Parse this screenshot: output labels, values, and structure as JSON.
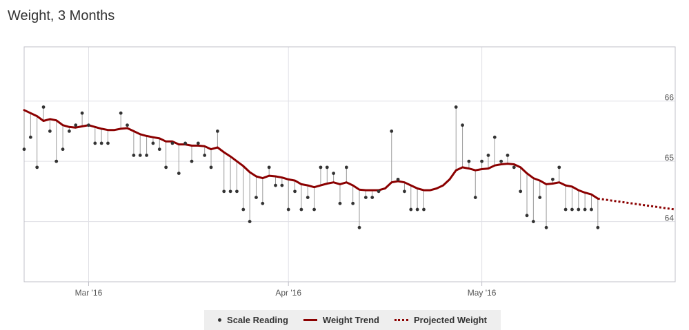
{
  "title": "Weight, 3 Months",
  "colors": {
    "trend": "#8b0000",
    "projected": "#8b0000",
    "reading": "#333333",
    "stem": "#999999",
    "grid": "#e0e0e6",
    "axis": "#c0c0c8"
  },
  "chart_data": {
    "type": "line",
    "title": "Weight, 3 Months",
    "x_axis": {
      "type": "date",
      "range": [
        "2016-02-20",
        "2016-05-31"
      ],
      "ticks": [
        {
          "date": "2016-03-01",
          "label": "Mar '16"
        },
        {
          "date": "2016-04-01",
          "label": "Apr '16"
        },
        {
          "date": "2016-05-01",
          "label": "May '16"
        }
      ]
    },
    "y_axis": {
      "range": [
        63.0,
        66.9
      ],
      "ticks": [
        64,
        65,
        66
      ],
      "position": "right"
    },
    "grid": true,
    "legend": {
      "position": "bottom-center",
      "items": [
        "Scale Reading",
        "Weight Trend",
        "Projected Weight"
      ]
    },
    "series": [
      {
        "name": "Scale Reading",
        "type": "scatter",
        "points": [
          [
            "2016-02-20",
            65.2
          ],
          [
            "2016-02-21",
            65.4
          ],
          [
            "2016-02-22",
            64.9
          ],
          [
            "2016-02-23",
            65.9
          ],
          [
            "2016-02-24",
            65.5
          ],
          [
            "2016-02-25",
            65.0
          ],
          [
            "2016-02-26",
            65.2
          ],
          [
            "2016-02-27",
            65.5
          ],
          [
            "2016-02-28",
            65.6
          ],
          [
            "2016-02-29",
            65.8
          ],
          [
            "2016-03-01",
            65.6
          ],
          [
            "2016-03-02",
            65.3
          ],
          [
            "2016-03-03",
            65.3
          ],
          [
            "2016-03-04",
            65.3
          ],
          [
            "2016-03-06",
            65.8
          ],
          [
            "2016-03-07",
            65.6
          ],
          [
            "2016-03-08",
            65.1
          ],
          [
            "2016-03-09",
            65.1
          ],
          [
            "2016-03-10",
            65.1
          ],
          [
            "2016-03-11",
            65.3
          ],
          [
            "2016-03-12",
            65.2
          ],
          [
            "2016-03-13",
            64.9
          ],
          [
            "2016-03-14",
            65.3
          ],
          [
            "2016-03-15",
            64.8
          ],
          [
            "2016-03-16",
            65.3
          ],
          [
            "2016-03-17",
            65.0
          ],
          [
            "2016-03-18",
            65.3
          ],
          [
            "2016-03-19",
            65.1
          ],
          [
            "2016-03-20",
            64.9
          ],
          [
            "2016-03-21",
            65.5
          ],
          [
            "2016-03-22",
            64.5
          ],
          [
            "2016-03-23",
            64.5
          ],
          [
            "2016-03-24",
            64.5
          ],
          [
            "2016-03-25",
            64.2
          ],
          [
            "2016-03-26",
            64.0
          ],
          [
            "2016-03-27",
            64.4
          ],
          [
            "2016-03-28",
            64.3
          ],
          [
            "2016-03-29",
            64.9
          ],
          [
            "2016-03-30",
            64.6
          ],
          [
            "2016-03-31",
            64.6
          ],
          [
            "2016-04-01",
            64.2
          ],
          [
            "2016-04-02",
            64.5
          ],
          [
            "2016-04-03",
            64.2
          ],
          [
            "2016-04-04",
            64.4
          ],
          [
            "2016-04-05",
            64.2
          ],
          [
            "2016-04-06",
            64.9
          ],
          [
            "2016-04-07",
            64.9
          ],
          [
            "2016-04-08",
            64.8
          ],
          [
            "2016-04-09",
            64.3
          ],
          [
            "2016-04-10",
            64.9
          ],
          [
            "2016-04-11",
            64.3
          ],
          [
            "2016-04-12",
            63.9
          ],
          [
            "2016-04-13",
            64.4
          ],
          [
            "2016-04-14",
            64.4
          ],
          [
            "2016-04-15",
            64.5
          ],
          [
            "2016-04-17",
            65.5
          ],
          [
            "2016-04-18",
            64.7
          ],
          [
            "2016-04-19",
            64.5
          ],
          [
            "2016-04-20",
            64.2
          ],
          [
            "2016-04-21",
            64.2
          ],
          [
            "2016-04-22",
            64.2
          ],
          [
            "2016-04-27",
            65.9
          ],
          [
            "2016-04-28",
            65.6
          ],
          [
            "2016-04-29",
            65.0
          ],
          [
            "2016-04-30",
            64.4
          ],
          [
            "2016-05-01",
            65.0
          ],
          [
            "2016-05-02",
            65.1
          ],
          [
            "2016-05-03",
            65.4
          ],
          [
            "2016-05-04",
            65.0
          ],
          [
            "2016-05-05",
            65.1
          ],
          [
            "2016-05-06",
            64.9
          ],
          [
            "2016-05-07",
            64.5
          ],
          [
            "2016-05-08",
            64.1
          ],
          [
            "2016-05-09",
            64.0
          ],
          [
            "2016-05-10",
            64.4
          ],
          [
            "2016-05-11",
            63.9
          ],
          [
            "2016-05-12",
            64.7
          ],
          [
            "2016-05-13",
            64.9
          ],
          [
            "2016-05-14",
            64.2
          ],
          [
            "2016-05-15",
            64.2
          ],
          [
            "2016-05-16",
            64.2
          ],
          [
            "2016-05-17",
            64.2
          ],
          [
            "2016-05-18",
            64.2
          ],
          [
            "2016-05-19",
            63.9
          ]
        ]
      },
      {
        "name": "Weight Trend",
        "type": "line",
        "points": [
          [
            "2016-02-20",
            65.85
          ],
          [
            "2016-02-21",
            65.8
          ],
          [
            "2016-02-22",
            65.75
          ],
          [
            "2016-02-23",
            65.67
          ],
          [
            "2016-02-24",
            65.7
          ],
          [
            "2016-02-25",
            65.68
          ],
          [
            "2016-02-26",
            65.6
          ],
          [
            "2016-02-27",
            65.57
          ],
          [
            "2016-02-28",
            65.56
          ],
          [
            "2016-02-29",
            65.58
          ],
          [
            "2016-03-01",
            65.6
          ],
          [
            "2016-03-02",
            65.57
          ],
          [
            "2016-03-03",
            65.54
          ],
          [
            "2016-03-04",
            65.52
          ],
          [
            "2016-03-05",
            65.52
          ],
          [
            "2016-03-06",
            65.54
          ],
          [
            "2016-03-07",
            65.55
          ],
          [
            "2016-03-08",
            65.5
          ],
          [
            "2016-03-09",
            65.45
          ],
          [
            "2016-03-10",
            65.42
          ],
          [
            "2016-03-11",
            65.4
          ],
          [
            "2016-03-12",
            65.38
          ],
          [
            "2016-03-13",
            65.33
          ],
          [
            "2016-03-14",
            65.33
          ],
          [
            "2016-03-15",
            65.28
          ],
          [
            "2016-03-16",
            65.28
          ],
          [
            "2016-03-17",
            65.26
          ],
          [
            "2016-03-18",
            65.26
          ],
          [
            "2016-03-19",
            65.25
          ],
          [
            "2016-03-20",
            65.2
          ],
          [
            "2016-03-21",
            65.23
          ],
          [
            "2016-03-22",
            65.15
          ],
          [
            "2016-03-23",
            65.08
          ],
          [
            "2016-03-24",
            65.0
          ],
          [
            "2016-03-25",
            64.92
          ],
          [
            "2016-03-26",
            64.82
          ],
          [
            "2016-03-27",
            64.75
          ],
          [
            "2016-03-28",
            64.72
          ],
          [
            "2016-03-29",
            64.76
          ],
          [
            "2016-03-30",
            64.75
          ],
          [
            "2016-03-31",
            64.73
          ],
          [
            "2016-04-01",
            64.7
          ],
          [
            "2016-04-02",
            64.68
          ],
          [
            "2016-04-03",
            64.62
          ],
          [
            "2016-04-04",
            64.6
          ],
          [
            "2016-04-05",
            64.57
          ],
          [
            "2016-04-06",
            64.6
          ],
          [
            "2016-04-07",
            64.63
          ],
          [
            "2016-04-08",
            64.65
          ],
          [
            "2016-04-09",
            64.62
          ],
          [
            "2016-04-10",
            64.65
          ],
          [
            "2016-04-11",
            64.6
          ],
          [
            "2016-04-12",
            64.53
          ],
          [
            "2016-04-13",
            64.52
          ],
          [
            "2016-04-14",
            64.52
          ],
          [
            "2016-04-15",
            64.52
          ],
          [
            "2016-04-16",
            64.55
          ],
          [
            "2016-04-17",
            64.65
          ],
          [
            "2016-04-18",
            64.67
          ],
          [
            "2016-04-19",
            64.65
          ],
          [
            "2016-04-20",
            64.6
          ],
          [
            "2016-04-21",
            64.55
          ],
          [
            "2016-04-22",
            64.52
          ],
          [
            "2016-04-23",
            64.52
          ],
          [
            "2016-04-24",
            64.55
          ],
          [
            "2016-04-25",
            64.6
          ],
          [
            "2016-04-26",
            64.7
          ],
          [
            "2016-04-27",
            64.85
          ],
          [
            "2016-04-28",
            64.9
          ],
          [
            "2016-04-29",
            64.88
          ],
          [
            "2016-04-30",
            64.85
          ],
          [
            "2016-05-01",
            64.87
          ],
          [
            "2016-05-02",
            64.88
          ],
          [
            "2016-05-03",
            64.93
          ],
          [
            "2016-05-04",
            64.95
          ],
          [
            "2016-05-05",
            64.96
          ],
          [
            "2016-05-06",
            64.95
          ],
          [
            "2016-05-07",
            64.9
          ],
          [
            "2016-05-08",
            64.8
          ],
          [
            "2016-05-09",
            64.72
          ],
          [
            "2016-05-10",
            64.68
          ],
          [
            "2016-05-11",
            64.62
          ],
          [
            "2016-05-12",
            64.63
          ],
          [
            "2016-05-13",
            64.65
          ],
          [
            "2016-05-14",
            64.6
          ],
          [
            "2016-05-15",
            64.58
          ],
          [
            "2016-05-16",
            64.52
          ],
          [
            "2016-05-17",
            64.48
          ],
          [
            "2016-05-18",
            64.45
          ],
          [
            "2016-05-19",
            64.38
          ]
        ]
      },
      {
        "name": "Projected Weight",
        "type": "line",
        "style": "dotted",
        "points": [
          [
            "2016-05-19",
            64.38
          ],
          [
            "2016-05-31",
            64.2
          ]
        ]
      }
    ]
  }
}
